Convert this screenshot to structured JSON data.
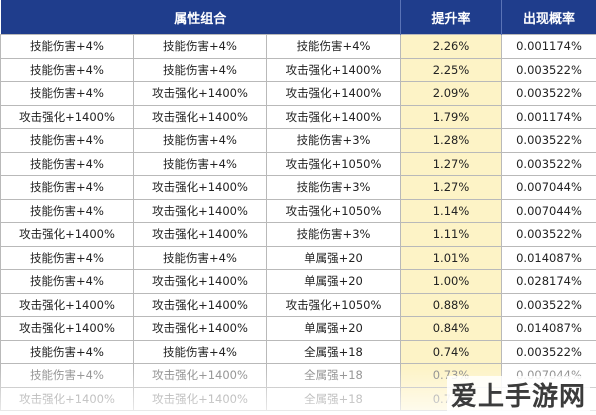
{
  "headers": [
    "属性组合",
    "",
    "",
    "提升率",
    "出现概率"
  ],
  "rows": [
    [
      "技能伤害+4%",
      "技能伤害+4%",
      "技能伤害+4%",
      "2.26%",
      "0.001174%"
    ],
    [
      "技能伤害+4%",
      "技能伤害+4%",
      "攻击强化+1400%",
      "2.25%",
      "0.003522%"
    ],
    [
      "技能伤害+4%",
      "攻击强化+1400%",
      "攻击强化+1400%",
      "2.09%",
      "0.003522%"
    ],
    [
      "攻击强化+1400%",
      "攻击强化+1400%",
      "攻击强化+1400%",
      "1.79%",
      "0.001174%"
    ],
    [
      "技能伤害+4%",
      "技能伤害+4%",
      "技能伤害+3%",
      "1.28%",
      "0.003522%"
    ],
    [
      "技能伤害+4%",
      "技能伤害+4%",
      "攻击强化+1050%",
      "1.27%",
      "0.003522%"
    ],
    [
      "技能伤害+4%",
      "攻击强化+1400%",
      "技能伤害+3%",
      "1.27%",
      "0.007044%"
    ],
    [
      "技能伤害+4%",
      "攻击强化+1400%",
      "攻击强化+1050%",
      "1.14%",
      "0.007044%"
    ],
    [
      "攻击强化+1400%",
      "攻击强化+1400%",
      "技能伤害+3%",
      "1.11%",
      "0.003522%"
    ],
    [
      "技能伤害+4%",
      "技能伤害+4%",
      "单属强+20",
      "1.01%",
      "0.014087%"
    ],
    [
      "技能伤害+4%",
      "攻击强化+1400%",
      "单属强+20",
      "1.00%",
      "0.028174%"
    ],
    [
      "攻击强化+1400%",
      "攻击强化+1400%",
      "攻击强化+1050%",
      "0.88%",
      "0.003522%"
    ],
    [
      "攻击强化+1400%",
      "攻击强化+1400%",
      "单属强+20",
      "0.84%",
      "0.014087%"
    ],
    [
      "技能伤害+4%",
      "技能伤害+4%",
      "全属强+18",
      "0.74%",
      "0.003522%"
    ],
    [
      "技能伤害+4%",
      "攻击强化+1400%",
      "全属强+18",
      "0.73%",
      "0.007044%"
    ],
    [
      "攻击强化+1400%",
      "攻击强化+1400%",
      "全属强+18",
      "0.72%",
      ""
    ]
  ],
  "watermark": "爱上手游网"
}
